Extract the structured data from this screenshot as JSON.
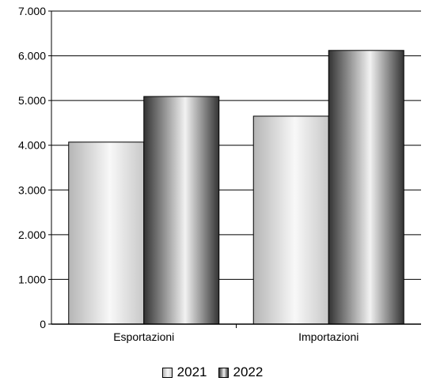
{
  "chart_data": {
    "type": "bar",
    "title": "",
    "xlabel": "",
    "ylabel": "",
    "categories": [
      "Esportazioni",
      "Importazioni"
    ],
    "series": [
      {
        "name": "2021",
        "values": [
          4070,
          4650
        ]
      },
      {
        "name": "2022",
        "values": [
          5090,
          6120
        ]
      }
    ],
    "ylim": [
      0,
      7000
    ],
    "yticks": [
      0,
      1000,
      2000,
      3000,
      4000,
      5000,
      6000,
      7000
    ],
    "ytick_labels": [
      "0",
      "1.000",
      "2.000",
      "3.000",
      "4.000",
      "5.000",
      "6.000",
      "7.000"
    ],
    "grid": true,
    "legend_position": "bottom"
  }
}
